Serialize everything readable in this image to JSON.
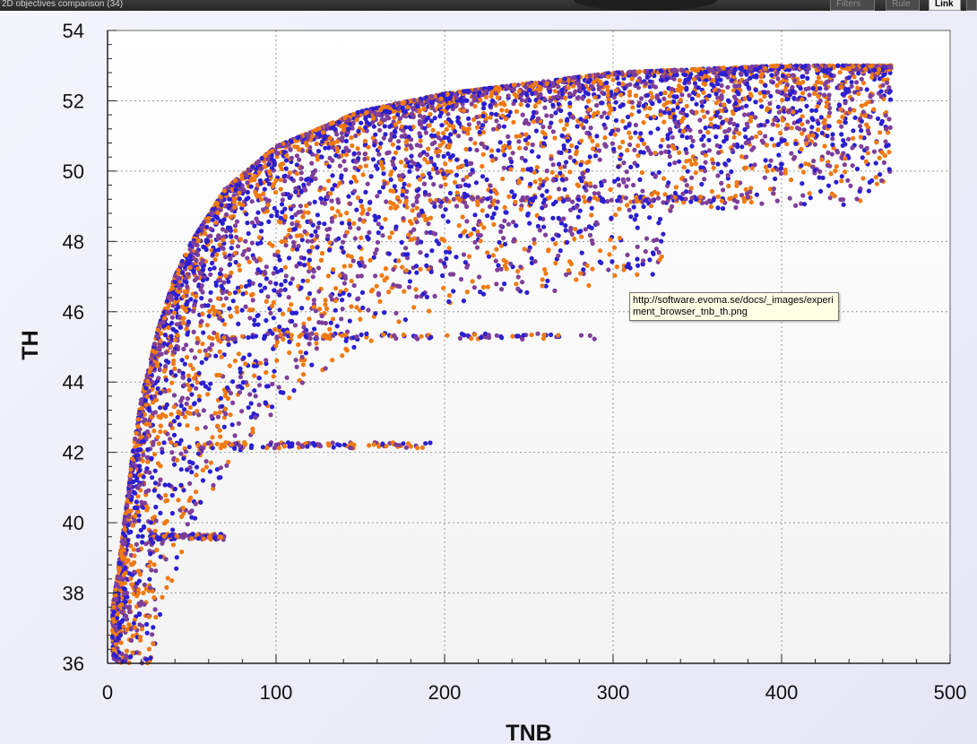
{
  "window": {
    "title": "2D objectives comparison (34)",
    "buttons": {
      "filters": "Filters",
      "rule": "Rule",
      "link": "Link",
      "extra": ""
    }
  },
  "tooltip": {
    "text": "http://software.evoma.se/docs/_images/experiment_browser_tnb_th.png"
  },
  "colors": {
    "series_a": "#2a1fd0",
    "series_b": "#f07a10",
    "series_c": "#7e3f9a",
    "grid": "#9a9a9a",
    "plot_bg": "#ffffff"
  },
  "chart_data": {
    "type": "scatter",
    "xlabel": "TNB",
    "ylabel": "TH",
    "xlim": [
      0,
      500
    ],
    "ylim": [
      36,
      54
    ],
    "xticks": [
      0,
      100,
      200,
      300,
      400,
      500
    ],
    "yticks": [
      36,
      38,
      40,
      42,
      44,
      46,
      48,
      50,
      52,
      54
    ],
    "grid": true,
    "legend": "none",
    "frontier": [
      [
        3,
        37.5
      ],
      [
        6,
        38.5
      ],
      [
        10,
        40
      ],
      [
        15,
        42
      ],
      [
        20,
        43.5
      ],
      [
        30,
        45.5
      ],
      [
        40,
        47
      ],
      [
        50,
        48
      ],
      [
        70,
        49.5
      ],
      [
        100,
        50.7
      ],
      [
        150,
        51.7
      ],
      [
        200,
        52.2
      ],
      [
        300,
        52.8
      ],
      [
        400,
        53
      ],
      [
        465,
        53
      ]
    ],
    "horizontal_bands": [
      {
        "th": 49.2,
        "tnb_range": [
          200,
          380
        ]
      },
      {
        "th": 45.3,
        "tnb_range": [
          60,
          290
        ]
      },
      {
        "th": 42.2,
        "tnb_range": [
          40,
          195
        ]
      },
      {
        "th": 39.6,
        "tnb_range": [
          25,
          70
        ]
      }
    ],
    "point_count": 6000
  }
}
